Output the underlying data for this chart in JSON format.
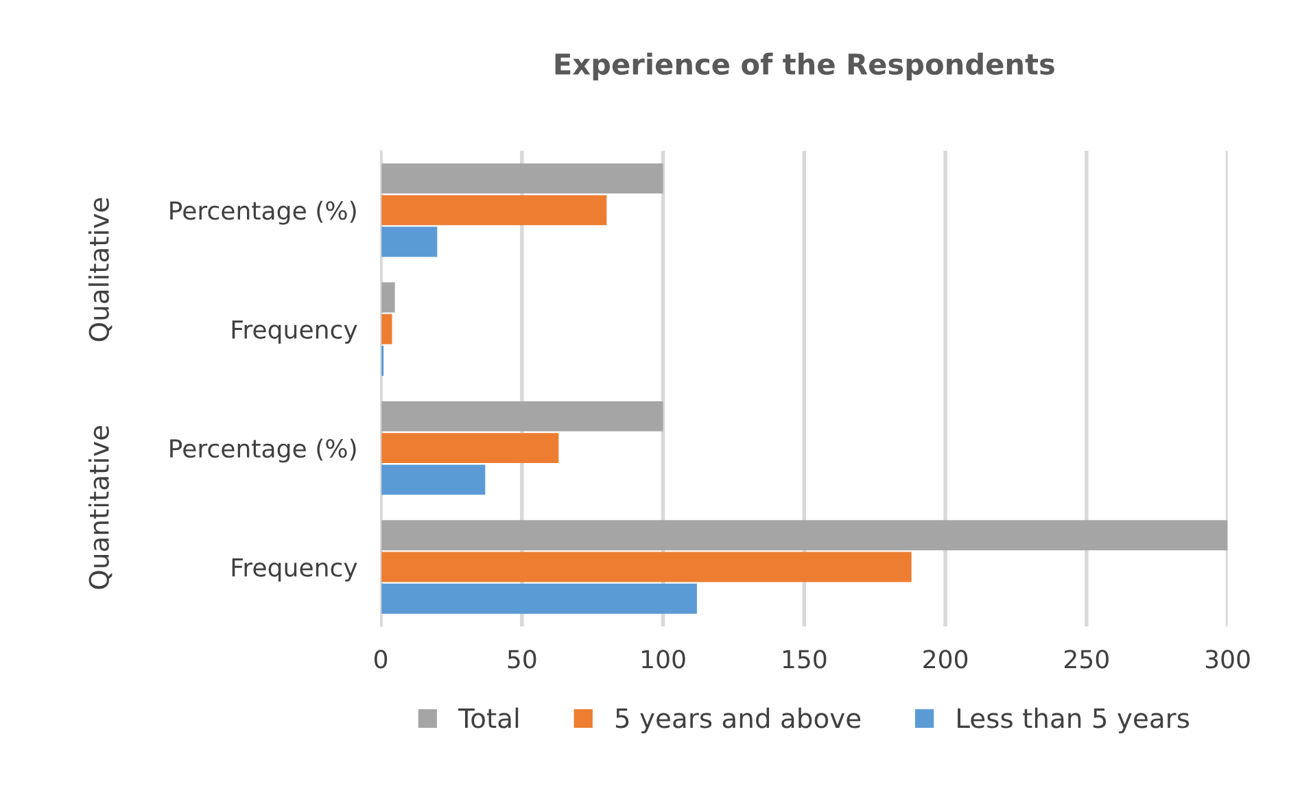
{
  "chart_data": {
    "type": "bar",
    "orientation": "horizontal",
    "title": "Experience of the Respondents",
    "categories": [
      "Percentage (%)",
      "Frequency",
      "Percentage (%)",
      "Frequency"
    ],
    "series": [
      {
        "name": "Total",
        "color": "#a5a5a5",
        "values": [
          100,
          5,
          100,
          300
        ]
      },
      {
        "name": "5 years and above",
        "color": "#ed7d31",
        "values": [
          80,
          4,
          63,
          188
        ]
      },
      {
        "name": "Less than 5 years",
        "color": "#5b9bd5",
        "values": [
          20,
          1,
          37,
          112
        ]
      }
    ],
    "annotations": [
      "Qualitative",
      "Quantitative"
    ],
    "xlim": [
      0,
      300
    ],
    "xticks": [
      0,
      50,
      100,
      150,
      200,
      250,
      300
    ],
    "grid": "x",
    "legend": "bottom"
  }
}
